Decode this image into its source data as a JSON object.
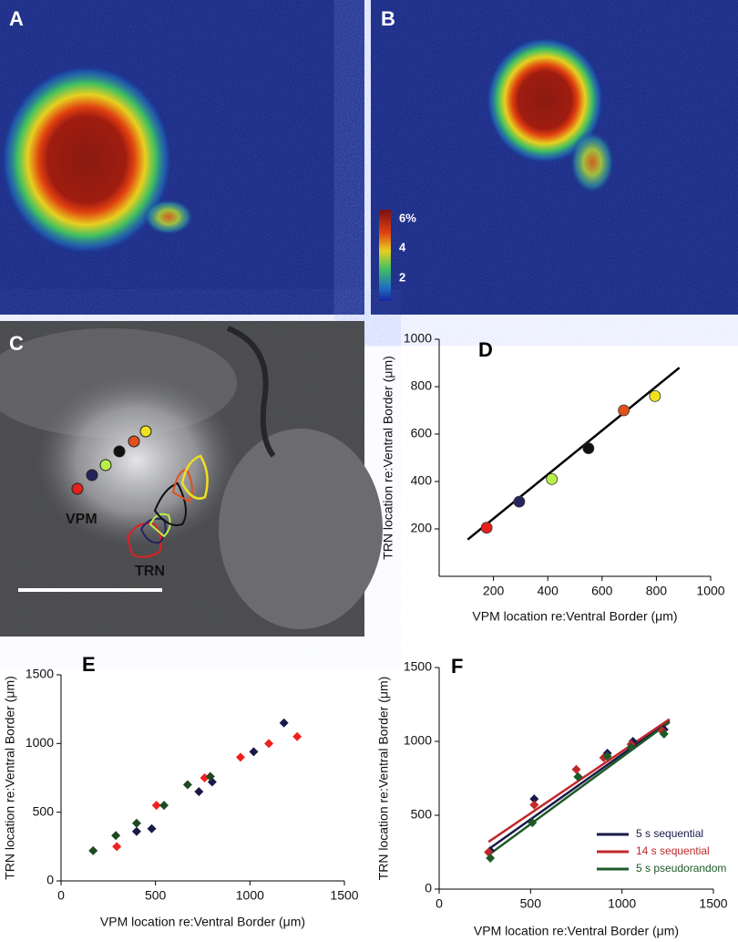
{
  "panels": {
    "A": {
      "label": "A"
    },
    "B": {
      "label": "B",
      "colorbar_labels": [
        "6%",
        "4",
        "2"
      ]
    },
    "C": {
      "label": "C",
      "texts": [
        "VPM",
        "TRN"
      ]
    }
  },
  "chart_data": [
    {
      "type": "scatter",
      "label": "D",
      "marker": "circle",
      "x_label": "VPM location re:Ventral Border (μm)",
      "y_label": "TRN location re:Ventral Border (μm)",
      "xlim": [
        0,
        1000
      ],
      "ylim": [
        0,
        1000
      ],
      "xticks": [
        200,
        400,
        600,
        800,
        1000
      ],
      "yticks": [
        200,
        400,
        600,
        800,
        1000
      ],
      "series": [
        {
          "x": [
            175,
            295,
            415,
            550,
            680,
            795
          ],
          "values": [
            205,
            315,
            410,
            540,
            700,
            760
          ],
          "colors": [
            "#e8201a",
            "#24245e",
            "#b8f04a",
            "#111111",
            "#e0501c",
            "#f0e020"
          ]
        }
      ],
      "fits": [
        {
          "x": [
            105,
            885
          ],
          "values": [
            155,
            880
          ],
          "color": "#000000"
        }
      ]
    },
    {
      "type": "scatter",
      "label": "E",
      "marker": "diamond",
      "x_label": "VPM location re:Ventral Border (μm)",
      "y_label": "TRN location re:Ventral Border (μm)",
      "xlim": [
        0,
        1500
      ],
      "ylim": [
        0,
        1500
      ],
      "xticks": [
        0,
        500,
        1000,
        1500
      ],
      "yticks": [
        0,
        500,
        1000,
        1500
      ],
      "series": [
        {
          "color": "#1a1a4a",
          "x": [
            400,
            480,
            730,
            800,
            1020,
            1180
          ],
          "values": [
            360,
            380,
            650,
            720,
            940,
            1150
          ]
        },
        {
          "color": "#f02020",
          "x": [
            295,
            505,
            760,
            950,
            1100,
            1250
          ],
          "values": [
            250,
            550,
            750,
            900,
            1000,
            1050
          ]
        },
        {
          "color": "#1e4a20",
          "x": [
            170,
            290,
            400,
            545,
            670,
            790
          ],
          "values": [
            220,
            330,
            420,
            550,
            700,
            760
          ]
        }
      ]
    },
    {
      "type": "scatter",
      "label": "F",
      "marker": "diamond",
      "x_label": "VPM location re:Ventral Border (μm)",
      "y_label": "TRN location re:Ventral Border (μm)",
      "xlim": [
        0,
        1500
      ],
      "ylim": [
        0,
        1500
      ],
      "xticks": [
        0,
        500,
        1000,
        1500
      ],
      "yticks": [
        0,
        500,
        1000,
        1500
      ],
      "series": [
        {
          "name": "5 s sequential",
          "color": "#1a1a4a",
          "x": [
            280,
            520,
            760,
            920,
            1060,
            1230
          ],
          "values": [
            260,
            610,
            760,
            920,
            1000,
            1080
          ]
        },
        {
          "name": "14 s sequential",
          "color": "#c0282a",
          "x": [
            270,
            520,
            750,
            900,
            1050,
            1220
          ],
          "values": [
            250,
            570,
            810,
            890,
            980,
            1070
          ]
        },
        {
          "name": "5 s pseudorandom",
          "color": "#1e5a28",
          "x": [
            280,
            510,
            760,
            920,
            1050,
            1230
          ],
          "values": [
            210,
            450,
            760,
            900,
            960,
            1050
          ]
        }
      ],
      "fits": [
        {
          "x": [
            270,
            1260
          ],
          "values": [
            270,
            1140
          ],
          "color": "#1a1a4a"
        },
        {
          "x": [
            270,
            1260
          ],
          "values": [
            320,
            1150
          ],
          "color": "#c0282a"
        },
        {
          "x": [
            280,
            1260
          ],
          "values": [
            240,
            1130
          ],
          "color": "#1e5a28"
        }
      ]
    }
  ]
}
